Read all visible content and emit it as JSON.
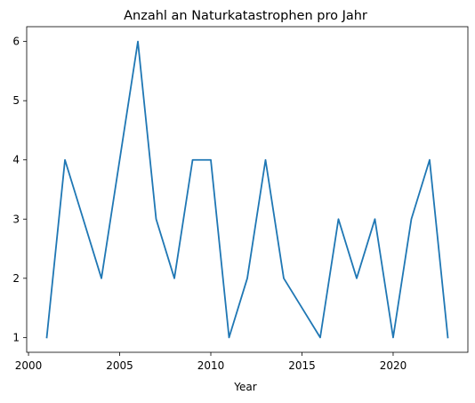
{
  "chart_data": {
    "type": "line",
    "title": "Anzahl an Naturkatastrophen pro Jahr",
    "xlabel": "Year",
    "ylabel": "",
    "x": [
      2001,
      2002,
      2003,
      2004,
      2005,
      2006,
      2007,
      2008,
      2009,
      2010,
      2011,
      2012,
      2013,
      2014,
      2015,
      2016,
      2017,
      2018,
      2019,
      2020,
      2021,
      2022,
      2023
    ],
    "series": [
      {
        "values": [
          1,
          4,
          3,
          2,
          4,
          6,
          3,
          2,
          4,
          4,
          1,
          2,
          4,
          2,
          1.5,
          1,
          3,
          2,
          3,
          1,
          3,
          4,
          1
        ],
        "color": "#1f77b4"
      }
    ],
    "xlim": [
      1999.9,
      2024.1
    ],
    "ylim": [
      0.75,
      6.25
    ],
    "xticks": [
      2000,
      2005,
      2010,
      2015,
      2020
    ],
    "yticks": [
      1,
      2,
      3,
      4,
      5,
      6
    ],
    "grid": false
  }
}
